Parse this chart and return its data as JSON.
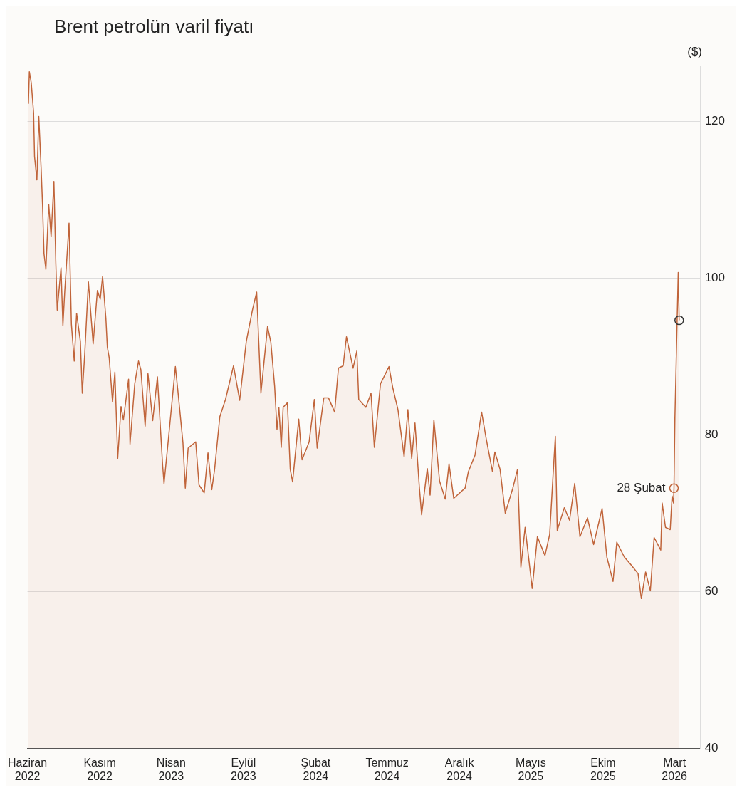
{
  "chart_data": {
    "type": "area",
    "title": "Brent petrolün varil fiyatı",
    "ylabel": "($)",
    "xlim": [
      "2022-06-01",
      "2026-04-25"
    ],
    "xticks": [
      {
        "value": "2022-06-01",
        "label": "Haziran 2022"
      },
      {
        "value": "2022-11-01",
        "label": "Kasım 2022"
      },
      {
        "value": "2023-04-01",
        "label": "Nisan 2023"
      },
      {
        "value": "2023-09-01",
        "label": "Eylül 2023"
      },
      {
        "value": "2024-02-01",
        "label": "Şubat 2024"
      },
      {
        "value": "2024-07-01",
        "label": "Temmuz 2024"
      },
      {
        "value": "2024-12-01",
        "label": "Aralık 2024"
      },
      {
        "value": "2025-05-01",
        "label": "Mayıs 2025"
      },
      {
        "value": "2025-10-01",
        "label": "Ekim 2025"
      },
      {
        "value": "2026-03-01",
        "label": "Mart 2026"
      }
    ],
    "ylim": [
      40,
      127
    ],
    "yticks": [
      40,
      60,
      80,
      100,
      120
    ],
    "grid": "y",
    "legend": false,
    "annotations": [
      {
        "text": "28 Şubat",
        "x": "2026-02-28",
        "y": 73.2
      }
    ],
    "series": [
      {
        "color": "#c0643a",
        "x": [
          "2022-06-03",
          "2022-06-05",
          "2022-06-09",
          "2022-06-14",
          "2022-06-16",
          "2022-06-21",
          "2022-06-25",
          "2022-06-30",
          "2022-07-03",
          "2022-07-06",
          "2022-07-10",
          "2022-07-16",
          "2022-07-21",
          "2022-07-27",
          "2022-07-31",
          "2022-08-03",
          "2022-08-11",
          "2022-08-15",
          "2022-08-19",
          "2022-08-24",
          "2022-08-28",
          "2022-09-02",
          "2022-09-08",
          "2022-09-13",
          "2022-09-21",
          "2022-09-25",
          "2022-09-30",
          "2022-10-08",
          "2022-10-18",
          "2022-10-27",
          "2022-11-02",
          "2022-11-07",
          "2022-11-14",
          "2022-11-17",
          "2022-11-21",
          "2022-11-28",
          "2022-12-03",
          "2022-12-09",
          "2022-12-16",
          "2022-12-21",
          "2023-01-01",
          "2023-01-04",
          "2023-01-14",
          "2023-01-22",
          "2023-01-27",
          "2023-02-05",
          "2023-02-11",
          "2023-02-21",
          "2023-03-03",
          "2023-03-14",
          "2023-03-17",
          "2023-03-26",
          "2023-04-10",
          "2023-04-15",
          "2023-04-26",
          "2023-05-01",
          "2023-05-07",
          "2023-05-23",
          "2023-05-30",
          "2023-06-10",
          "2023-06-18",
          "2023-06-26",
          "2023-07-02",
          "2023-07-13",
          "2023-07-25",
          "2023-08-11",
          "2023-08-24",
          "2023-09-07",
          "2023-09-20",
          "2023-09-29",
          "2023-10-08",
          "2023-10-22",
          "2023-10-29",
          "2023-11-06",
          "2023-11-11",
          "2023-11-15",
          "2023-11-20",
          "2023-11-24",
          "2023-12-03",
          "2023-12-09",
          "2023-12-14",
          "2023-12-27",
          "2024-01-03",
          "2024-01-18",
          "2024-01-29",
          "2024-02-04",
          "2024-02-18",
          "2024-02-28",
          "2024-03-12",
          "2024-03-20",
          "2024-03-30",
          "2024-04-06",
          "2024-04-20",
          "2024-04-28",
          "2024-05-02",
          "2024-05-17",
          "2024-05-28",
          "2024-06-04",
          "2024-06-17",
          "2024-07-05",
          "2024-07-13",
          "2024-07-24",
          "2024-08-06",
          "2024-08-14",
          "2024-08-22",
          "2024-08-29",
          "2024-09-07",
          "2024-09-12",
          "2024-09-24",
          "2024-09-30",
          "2024-10-08",
          "2024-10-20",
          "2024-11-01",
          "2024-11-09",
          "2024-11-19",
          "2024-12-13",
          "2024-12-20",
          "2025-01-03",
          "2025-01-17",
          "2025-01-27",
          "2025-02-09",
          "2025-02-14",
          "2025-02-25",
          "2025-03-08",
          "2025-03-24",
          "2025-04-03",
          "2025-04-10",
          "2025-04-19",
          "2025-05-04",
          "2025-05-15",
          "2025-05-31",
          "2025-06-10",
          "2025-06-17",
          "2025-06-22",
          "2025-06-26",
          "2025-07-11",
          "2025-07-22",
          "2025-08-02",
          "2025-08-13",
          "2025-08-29",
          "2025-09-11",
          "2025-09-29",
          "2025-10-09",
          "2025-10-22",
          "2025-10-30",
          "2025-11-15",
          "2025-11-28",
          "2025-12-14",
          "2025-12-21",
          "2025-12-30",
          "2026-01-09",
          "2026-01-17",
          "2026-01-31",
          "2026-02-03",
          "2026-02-10",
          "2026-02-20",
          "2026-02-24",
          "2026-02-27",
          "2026-02-28",
          "2026-03-02",
          "2026-03-09",
          "2026-03-11"
        ],
        "values": [
          122.2,
          126.3,
          124.9,
          121.1,
          115.5,
          112.5,
          120.6,
          113.9,
          109.2,
          103.1,
          101.1,
          109.4,
          105.3,
          112.3,
          102,
          95.9,
          101.3,
          93.9,
          98.4,
          103.1,
          107,
          94.1,
          89.4,
          95.5,
          91.9,
          85.3,
          90.1,
          99.5,
          91.6,
          98.4,
          97.3,
          100.2,
          94.8,
          91.2,
          89.8,
          84.2,
          88,
          77,
          83.6,
          81.9,
          87.1,
          78.8,
          86.5,
          89.4,
          88.3,
          81.1,
          87.8,
          81.8,
          87.4,
          76.1,
          73.8,
          79.3,
          88.7,
          85.8,
          79,
          73.2,
          78.3,
          79.1,
          73.6,
          72.6,
          77.7,
          73,
          75.6,
          82.3,
          84.5,
          88.8,
          84.4,
          91.9,
          95.9,
          98.2,
          85.3,
          93.8,
          91.8,
          86.2,
          80.7,
          83.5,
          78.4,
          83.5,
          84.1,
          75.6,
          74,
          82,
          76.8,
          79.1,
          84.5,
          78.3,
          84.7,
          84.7,
          82.9,
          88.5,
          88.8,
          92.5,
          88.5,
          90.7,
          84.5,
          83.5,
          85.3,
          78.4,
          86.5,
          88.7,
          86,
          83.2,
          77.2,
          83.2,
          77,
          81.5,
          73.5,
          69.8,
          75.7,
          72.3,
          81.9,
          74.1,
          71.8,
          76.3,
          71.9,
          73.2,
          75.3,
          77.4,
          82.9,
          79.4,
          75.3,
          77.8,
          75.6,
          70,
          73.2,
          75.6,
          63.1,
          68.2,
          60.4,
          67,
          64.6,
          67.3,
          74.7,
          79.8,
          67.8,
          70.7,
          69.1,
          73.8,
          67,
          69.4,
          66,
          70.6,
          64.4,
          61.3,
          66.3,
          64.4,
          63.5,
          62.3,
          59.1,
          62.5,
          60.1,
          66.9,
          65.3,
          71.3,
          68.2,
          67.9,
          72.2,
          71.3,
          73.2,
          82.3,
          100.7,
          94.6
        ]
      },
      {
        "type": "scatter",
        "marker": "circle",
        "x": [
          "2026-02-28",
          "2026-03-11"
        ],
        "values": [
          73.2,
          94.6
        ],
        "colors": [
          "#c0643a",
          "#333333"
        ]
      }
    ]
  }
}
